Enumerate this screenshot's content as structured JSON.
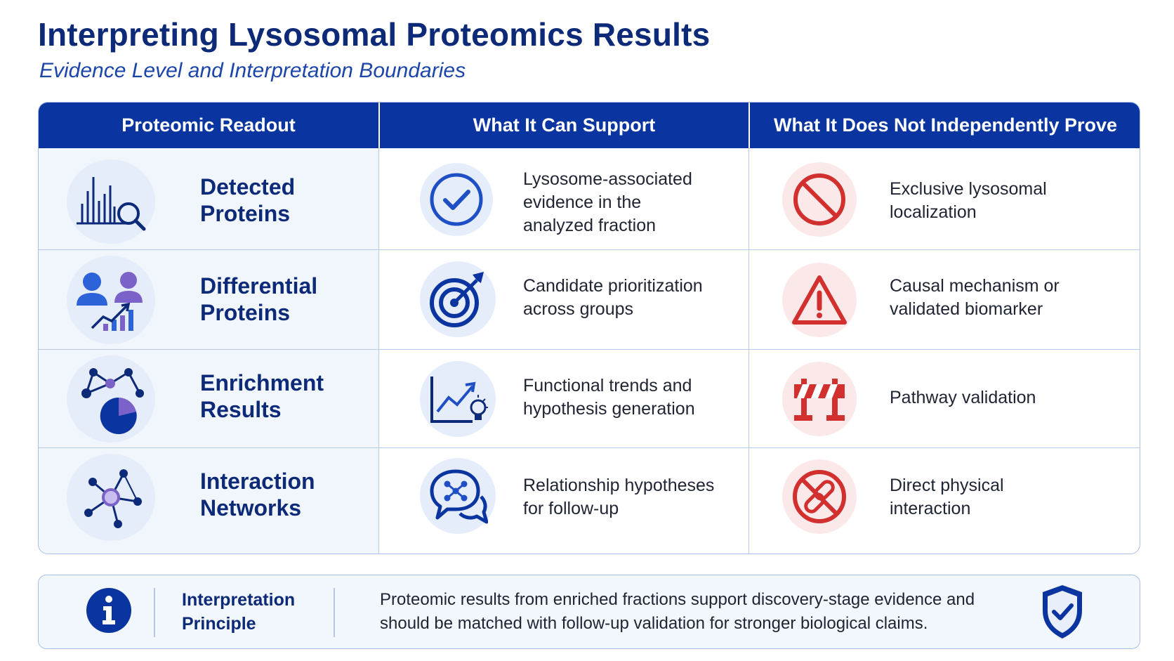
{
  "header": {
    "title": "Interpreting Lysosomal Proteomics Results",
    "subtitle": "Evidence Level and Interpretation Boundaries"
  },
  "table": {
    "columns": [
      "Proteomic Readout",
      "What It Can Support",
      "What It Does Not Independently Prove"
    ],
    "rows": [
      {
        "readout": [
          "Detected",
          "Proteins"
        ],
        "readout_icon": "bar-chart-magnifier-icon",
        "supports": [
          "Lysosome-associated",
          "evidence in the",
          "analyzed fraction"
        ],
        "supports_icon": "check-circle-icon",
        "not_proven": [
          "Exclusive lysosomal",
          "localization"
        ],
        "not_proven_icon": "prohibited-icon"
      },
      {
        "readout": [
          "Differential",
          "Proteins"
        ],
        "readout_icon": "two-people-trend-icon",
        "supports": [
          "Candidate prioritization",
          "across groups"
        ],
        "supports_icon": "target-arrow-icon",
        "not_proven": [
          "Causal mechanism or",
          "validated biomarker"
        ],
        "not_proven_icon": "warning-triangle-icon"
      },
      {
        "readout": [
          "Enrichment",
          "Results"
        ],
        "readout_icon": "network-pie-chart-icon",
        "supports": [
          "Functional trends and",
          "hypothesis generation"
        ],
        "supports_icon": "trend-lightbulb-icon",
        "not_proven": [
          "Pathway validation"
        ],
        "not_proven_icon": "roadblock-icon"
      },
      {
        "readout": [
          "Interaction",
          "Networks"
        ],
        "readout_icon": "hub-network-icon",
        "supports": [
          "Relationship hypotheses",
          "for follow-up"
        ],
        "supports_icon": "chat-bubbles-network-icon",
        "not_proven": [
          "Direct physical",
          "interaction"
        ],
        "not_proven_icon": "broken-link-prohibited-icon"
      }
    ]
  },
  "principle": {
    "label": [
      "Interpretation",
      "Principle"
    ],
    "text": [
      "Proteomic results from enriched fractions support discovery-stage evidence and",
      "should be matched with follow-up validation for stronger biological claims."
    ],
    "info_icon": "info-circle-icon",
    "shield_icon": "shield-check-icon"
  },
  "colors": {
    "navy": "#0d2a78",
    "header_blue": "#0a34a0",
    "accent_blue": "#1f4fc4",
    "purple": "#7b62c9",
    "red": "#d22f2f"
  }
}
